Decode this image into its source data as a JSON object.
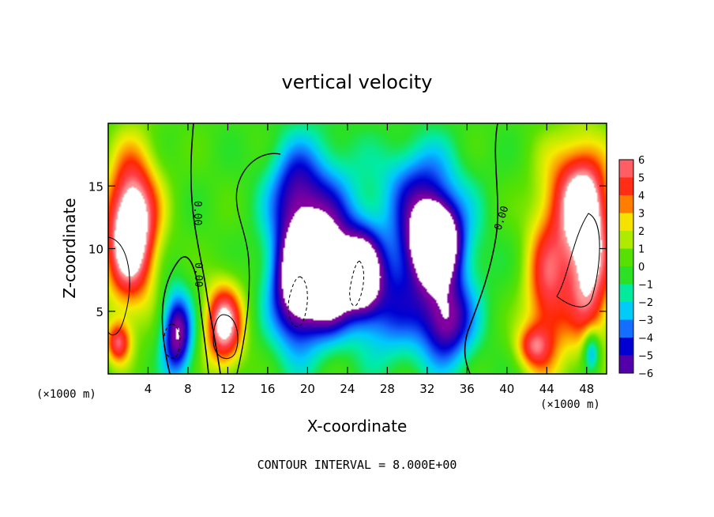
{
  "chart_data": {
    "type": "heatmap",
    "title": "vertical velocity",
    "xlabel": "X-coordinate",
    "ylabel": "Z-coordinate",
    "x_unit_label": "(×1000 m)",
    "footer": "CONTOUR INTERVAL = 8.000E+00",
    "xlim": [
      0,
      50
    ],
    "ylim": [
      0,
      20
    ],
    "x_ticks": [
      "4",
      "8",
      "12",
      "16",
      "20",
      "24",
      "28",
      "32",
      "36",
      "40",
      "44",
      "48"
    ],
    "x_tick_values": [
      4,
      8,
      12,
      16,
      20,
      24,
      28,
      32,
      36,
      40,
      44,
      48
    ],
    "y_ticks": [
      "5",
      "10",
      "15"
    ],
    "y_tick_values": [
      5,
      10,
      15
    ],
    "colorbar_labels": [
      "6",
      "5",
      "4",
      "3",
      "2",
      "1",
      "0",
      "−1",
      "−2",
      "−3",
      "−4",
      "−5",
      "−6"
    ],
    "colorbar_range": [
      -6,
      6
    ],
    "contour_labels": [
      "0.00",
      "0.00",
      "0.00"
    ],
    "features": [
      {
        "x": 2.0,
        "z": 11.0,
        "sx": 1.8,
        "sz": 4.0,
        "amp": 6.5
      },
      {
        "x": 1.0,
        "z": 2.5,
        "sx": 0.9,
        "sz": 1.2,
        "amp": 5.0
      },
      {
        "x": 3.0,
        "z": 13.0,
        "sx": 1.8,
        "sz": 4.0,
        "amp": 3.0
      },
      {
        "x": 6.9,
        "z": 3.2,
        "sx": 1.1,
        "sz": 2.4,
        "amp": -6.5
      },
      {
        "x": 11.6,
        "z": 3.9,
        "sx": 1.4,
        "sz": 2.4,
        "amp": 6.8
      },
      {
        "x": 19.0,
        "z": 7.0,
        "sx": 1.9,
        "sz": 3.6,
        "amp": -7.5
      },
      {
        "x": 22.5,
        "z": 7.5,
        "sx": 1.6,
        "sz": 2.8,
        "amp": -7.2
      },
      {
        "x": 25.5,
        "z": 8.0,
        "sx": 1.3,
        "sz": 2.4,
        "amp": -6.8
      },
      {
        "x": 21.0,
        "z": 12.5,
        "sx": 3.0,
        "sz": 4.2,
        "amp": -4.0
      },
      {
        "x": 18.5,
        "z": 15.0,
        "sx": 1.8,
        "sz": 2.5,
        "amp": -2.5
      },
      {
        "x": 32.8,
        "z": 10.8,
        "sx": 1.6,
        "sz": 2.0,
        "amp": -8.0
      },
      {
        "x": 32.0,
        "z": 9.5,
        "sx": 3.2,
        "sz": 4.8,
        "amp": -4.8
      },
      {
        "x": 34.0,
        "z": 4.0,
        "sx": 1.8,
        "sz": 2.4,
        "amp": -4.5
      },
      {
        "x": 31.0,
        "z": 15.5,
        "sx": 2.5,
        "sz": 2.2,
        "amp": -2.0
      },
      {
        "x": 48.2,
        "z": 9.0,
        "sx": 1.7,
        "sz": 4.8,
        "amp": 6.8
      },
      {
        "x": 44.0,
        "z": 6.5,
        "sx": 1.6,
        "sz": 4.8,
        "amp": 4.8
      },
      {
        "x": 42.5,
        "z": 2.2,
        "sx": 1.2,
        "sz": 1.2,
        "amp": 3.5
      },
      {
        "x": 47.0,
        "z": 14.5,
        "sx": 2.2,
        "sz": 3.2,
        "amp": 4.5
      },
      {
        "x": 48.5,
        "z": 1.8,
        "sx": 0.6,
        "sz": 1.2,
        "amp": -4.5
      },
      {
        "x": 27.5,
        "z": 5.0,
        "sx": 2.0,
        "sz": 3.0,
        "amp": -2.5
      }
    ]
  }
}
